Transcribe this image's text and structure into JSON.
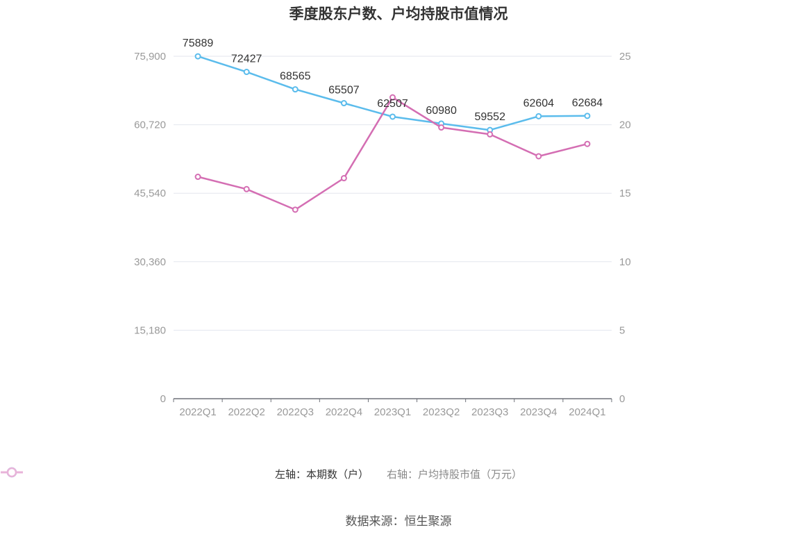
{
  "title": "季度股东户数、户均持股市值情况",
  "source": "数据来源：恒生聚源",
  "colors": {
    "left_series": "#5bbcec",
    "right_series": "#d46eb3",
    "grid": "#e3e6ee",
    "axis": "#6e7079",
    "tick": "#999999"
  },
  "legend": [
    {
      "label": "左轴：本期数（户）",
      "color": "#5bbcec",
      "icon": "circle-line-icon"
    },
    {
      "label": "右轴：户均持股市值（万元）",
      "color": "#e8b3d9",
      "icon": "circle-line-icon"
    }
  ],
  "chart_data": {
    "type": "line",
    "categories": [
      "2022Q1",
      "2022Q2",
      "2022Q3",
      "2022Q4",
      "2023Q1",
      "2023Q2",
      "2023Q3",
      "2023Q4",
      "2024Q1"
    ],
    "left_axis": {
      "min": 0,
      "max": 75900,
      "ticks": [
        0,
        15180,
        30360,
        45540,
        60720,
        75900
      ],
      "tick_labels": [
        "0",
        "15,180",
        "30,360",
        "45,540",
        "60,720",
        "75,900"
      ]
    },
    "right_axis": {
      "min": 0,
      "max": 25,
      "ticks": [
        0,
        5,
        10,
        15,
        20,
        25
      ],
      "tick_labels": [
        "0",
        "5",
        "10",
        "15",
        "20",
        "25"
      ]
    },
    "series": [
      {
        "name": "左轴：本期数（户）",
        "axis": "left",
        "values": [
          75889,
          72427,
          68565,
          65507,
          62507,
          60980,
          59552,
          62604,
          62684
        ],
        "labels": [
          "75889",
          "72427",
          "68565",
          "65507",
          "62507",
          "60980",
          "59552",
          "62604",
          "62684"
        ],
        "color": "#5bbcec"
      },
      {
        "name": "右轴：户均持股市值（万元）",
        "axis": "right",
        "values": [
          16.2,
          15.3,
          13.8,
          16.1,
          22.0,
          19.8,
          19.3,
          17.7,
          18.6
        ],
        "color": "#d46eb3"
      }
    ],
    "grid": true,
    "legend_position": "bottom"
  }
}
